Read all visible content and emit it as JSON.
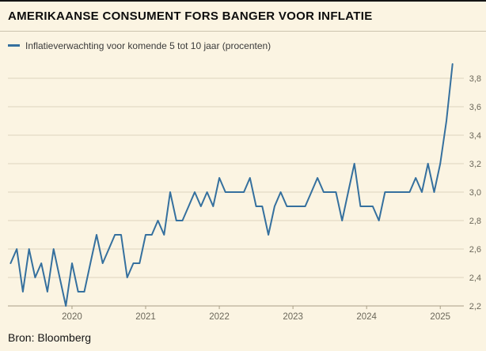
{
  "header": {
    "title": "AMERIKAANSE CONSUMENT FORS BANGER VOOR INFLATIE"
  },
  "legend": {
    "label": "Inflatieverwachting voor komende 5 tot 10 jaar (procenten)",
    "line_color": "#35709e"
  },
  "footer": {
    "source": "Bron: Bloomberg"
  },
  "colors": {
    "background": "#fbf4e2",
    "gridline": "#ded5bf",
    "axis": "#a89e86",
    "tick_label": "#6b675a",
    "line": "#35709e"
  },
  "chart_data": {
    "type": "line",
    "title": "AMERIKAANSE CONSUMENT FORS BANGER VOOR INFLATIE",
    "series_name": "Inflatieverwachting voor komende 5 tot 10 jaar (procenten)",
    "unit": "procenten",
    "frequency": "monthly",
    "x_start": {
      "year": 2019,
      "month": 3
    },
    "x_end": {
      "year": 2025,
      "month": 3
    },
    "values": [
      2.5,
      2.6,
      2.3,
      2.6,
      2.4,
      2.5,
      2.3,
      2.6,
      2.4,
      2.2,
      2.5,
      2.3,
      2.3,
      2.5,
      2.7,
      2.5,
      2.6,
      2.7,
      2.7,
      2.4,
      2.5,
      2.5,
      2.7,
      2.7,
      2.8,
      2.7,
      3.0,
      2.8,
      2.8,
      2.9,
      3.0,
      2.9,
      3.0,
      2.9,
      3.1,
      3.0,
      3.0,
      3.0,
      3.0,
      3.1,
      2.9,
      2.9,
      2.7,
      2.9,
      3.0,
      2.9,
      2.9,
      2.9,
      2.9,
      3.0,
      3.1,
      3.0,
      3.0,
      3.0,
      2.8,
      3.0,
      3.2,
      2.9,
      2.9,
      2.9,
      2.8,
      3.0,
      3.0,
      3.0,
      3.0,
      3.0,
      3.1,
      3.0,
      3.2,
      3.0,
      3.2,
      3.5,
      3.9
    ],
    "line_color": "#35709e",
    "y_ticks": [
      2.2,
      2.4,
      2.6,
      2.8,
      3.0,
      3.2,
      3.4,
      3.6,
      3.8
    ],
    "y_tick_labels": [
      "2,2",
      "2,4",
      "2,6",
      "2,8",
      "3,0",
      "3,2",
      "3,4",
      "3,6",
      "3,8"
    ],
    "x_tick_years": [
      2020,
      2021,
      2022,
      2023,
      2024,
      2025
    ],
    "x_tick_labels": [
      "2020",
      "2021",
      "2022",
      "2023",
      "2024",
      "2025"
    ],
    "ylim": [
      2.2,
      3.95
    ],
    "xlim": [
      2019.13,
      2025.32
    ],
    "grid": "horizontal",
    "legend_position": "top-left",
    "decimal_separator": ","
  }
}
